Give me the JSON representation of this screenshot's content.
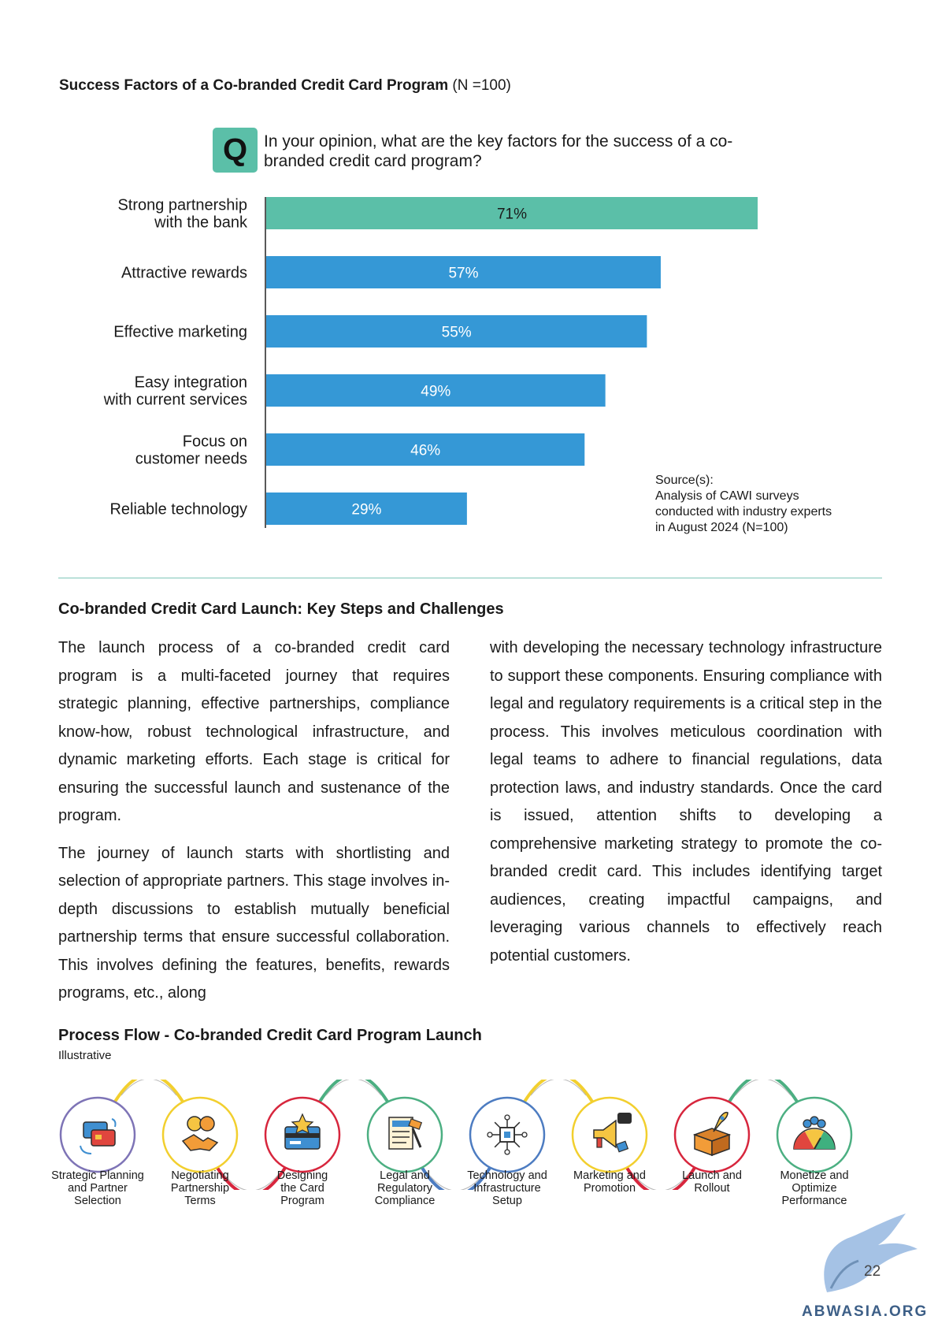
{
  "chart_title": {
    "bold": "Success Factors of a Co-branded Credit Card Program",
    "note": "(N =100)"
  },
  "question": {
    "badge": "Q",
    "text": "In your opinion, what are the key factors for the success of a co-branded credit card program?"
  },
  "chart_data": {
    "type": "bar",
    "orientation": "horizontal",
    "categories": [
      [
        "Strong partnership",
        "with the bank"
      ],
      [
        "Attractive rewards"
      ],
      [
        "Effective marketing"
      ],
      [
        "Easy integration",
        "with current services"
      ],
      [
        "Focus on",
        "customer needs"
      ],
      [
        "Reliable technology"
      ]
    ],
    "values": [
      71,
      57,
      55,
      49,
      46,
      29
    ],
    "value_labels": [
      "71%",
      "57%",
      "55%",
      "49%",
      "46%",
      "29%"
    ],
    "unit": "%",
    "xlim": [
      0,
      71
    ],
    "colors": [
      "#5bbfa8",
      "#3598d6",
      "#3598d6",
      "#3598d6",
      "#3598d6",
      "#3598d6"
    ],
    "label_colors": [
      "#1a1a1a",
      "#ffffff",
      "#ffffff",
      "#ffffff",
      "#ffffff",
      "#ffffff"
    ],
    "grid": false,
    "legend": "none"
  },
  "source": {
    "heading": "Source(s):",
    "lines": [
      "Analysis of CAWI surveys",
      "conducted with industry experts",
      "in August 2024 (N=100)"
    ]
  },
  "section": {
    "title": "Co-branded Credit Card Launch: Key Steps and Challenges",
    "left_paragraphs": [
      "The launch process of a co-branded credit card program is a multi-faceted journey that requires strategic planning, effective partnerships, compliance know-how, robust technological infrastructure, and dynamic marketing efforts. Each stage is critical for ensuring the successful launch and sustenance of the program.",
      "The journey of launch starts with shortlisting and selection of appropriate partners. This stage involves in-depth discussions to establish mutually beneficial partnership terms that ensure successful collaboration. This involves defining the features, benefits, rewards programs, etc., along"
    ],
    "right_paragraphs": [
      "with developing the necessary technology infrastructure to support these components. Ensuring compliance with legal and regulatory requirements is a critical step in the process. This involves meticulous coordination with legal teams to adhere to financial regulations, data protection laws, and industry standards. Once the card is issued, attention shifts to developing a comprehensive marketing strategy to promote the co-branded credit card. This includes identifying target audiences, creating impactful campaigns, and leveraging various channels to effectively reach potential customers."
    ]
  },
  "process_flow": {
    "title": "Process Flow - Co-branded Credit Card Program Launch",
    "subtitle": "Illustrative",
    "steps": [
      {
        "lines": [
          "Strategic Planning",
          "and Partner",
          "Selection"
        ],
        "color": "#7e74b6",
        "icon": "card-exchange-icon"
      },
      {
        "lines": [
          "Negotiating",
          "Partnership",
          "Terms"
        ],
        "color": "#f2cf2e",
        "icon": "handshake-icon"
      },
      {
        "lines": [
          "Designing",
          "the Card",
          "Program"
        ],
        "color": "#d7263d",
        "icon": "card-design-icon"
      },
      {
        "lines": [
          "Legal and",
          "Regulatory",
          "Compliance"
        ],
        "color": "#4caf82",
        "icon": "legal-document-icon"
      },
      {
        "lines": [
          "Technology and",
          "Infrastructure",
          "Setup"
        ],
        "color": "#4d7cc1",
        "icon": "circuit-chip-icon"
      },
      {
        "lines": [
          "Marketing and",
          "Promotion"
        ],
        "color": "#f2cf2e",
        "icon": "megaphone-icon"
      },
      {
        "lines": [
          "Launch and",
          "Rollout"
        ],
        "color": "#d7263d",
        "icon": "rocket-box-icon"
      },
      {
        "lines": [
          "Monetize and",
          "Optimize",
          "Performance"
        ],
        "color": "#4caf82",
        "icon": "team-gauge-icon"
      }
    ]
  },
  "page_number": "22",
  "watermark": "ABWASIA.ORG",
  "colors": {
    "teal": "#5bbfa8",
    "blue": "#3598d6",
    "divider": "#7fc6b8"
  }
}
